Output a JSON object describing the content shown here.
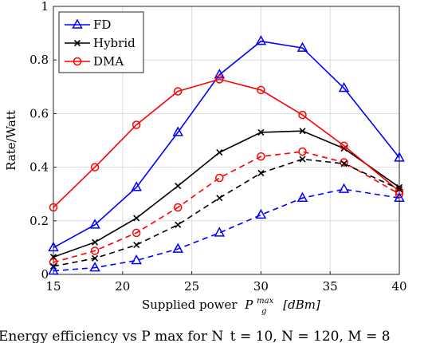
{
  "chart_data": {
    "type": "line",
    "xlabel": "Supplied power",
    "xlabel_symbol": "P",
    "xlabel_sub": "g",
    "xlabel_sup": "max",
    "xlabel_unit": "[dBm]",
    "ylabel": "Rate/Watt",
    "xlim": [
      15,
      40
    ],
    "ylim": [
      0,
      1
    ],
    "xticks": [
      "15",
      "20",
      "25",
      "30",
      "35",
      "40"
    ],
    "yticks": [
      "0",
      "0.2",
      "0.4",
      "0.6",
      "0.8",
      "1"
    ],
    "grid": true,
    "legend_position": "top-left",
    "x": [
      15,
      18,
      21,
      24,
      27,
      30,
      33,
      36,
      40
    ],
    "series": [
      {
        "name": "FD",
        "color": "#0000ff",
        "marker": "triangle",
        "dash": "solid",
        "values": [
          0.1,
          0.185,
          0.325,
          0.53,
          0.745,
          0.87,
          0.845,
          0.695,
          0.435
        ]
      },
      {
        "name": "Hybrid",
        "color": "#000000",
        "marker": "x",
        "dash": "solid",
        "values": [
          0.065,
          0.12,
          0.21,
          0.33,
          0.455,
          0.53,
          0.535,
          0.47,
          0.325
        ]
      },
      {
        "name": "DMA",
        "color": "#ff0000",
        "marker": "circle",
        "dash": "solid",
        "values": [
          0.25,
          0.4,
          0.558,
          0.683,
          0.728,
          0.688,
          0.595,
          0.48,
          0.31
        ]
      },
      {
        "color": "#ff0000",
        "marker": "circle",
        "dash": "dashed",
        "values": [
          0.045,
          0.088,
          0.155,
          0.25,
          0.36,
          0.44,
          0.458,
          0.418,
          0.3
        ]
      },
      {
        "color": "#000000",
        "marker": "x",
        "dash": "dashed",
        "values": [
          0.03,
          0.06,
          0.11,
          0.185,
          0.285,
          0.378,
          0.43,
          0.413,
          0.318
        ]
      },
      {
        "color": "#0000ff",
        "marker": "triangle",
        "dash": "dashed",
        "values": [
          0.013,
          0.025,
          0.052,
          0.095,
          0.155,
          0.222,
          0.285,
          0.318,
          0.285
        ]
      }
    ]
  },
  "caption": "Energy efficiency vs P max for N_t = 10, N = 120, M = 8"
}
